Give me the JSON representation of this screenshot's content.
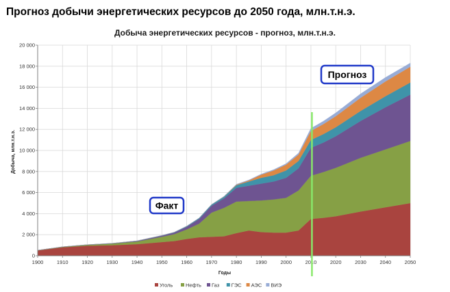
{
  "page_title": "Прогноз добычи энергетических ресурсов до 2050 года, млн.т.н.э.",
  "chart_data": {
    "type": "area",
    "stacked": true,
    "title": "Добыча энергетических  ресурсов - прогноз, млн.т.н.э.",
    "xlabel": "Годы",
    "ylabel": "Добыча, млн.т.н.э.",
    "xlim": [
      1900,
      2050
    ],
    "ylim": [
      0,
      20000
    ],
    "x_ticks": [
      1900,
      1910,
      1920,
      1930,
      1940,
      1950,
      1960,
      1970,
      1980,
      1990,
      2000,
      2010,
      2020,
      2030,
      2040,
      2050
    ],
    "y_ticks": [
      0,
      2000,
      4000,
      6000,
      8000,
      10000,
      12000,
      14000,
      16000,
      18000,
      20000
    ],
    "y_tick_labels": [
      "0",
      "2 000",
      "4 000",
      "6 000",
      "8 000",
      "10 000",
      "12 000",
      "14 000",
      "16 000",
      "18 000",
      "20 000"
    ],
    "grid": true,
    "legend_position": "bottom",
    "x": [
      1900,
      1910,
      1920,
      1930,
      1940,
      1950,
      1955,
      1960,
      1965,
      1970,
      1975,
      1980,
      1985,
      1990,
      1995,
      2000,
      2005,
      2010,
      2015,
      2020,
      2030,
      2040,
      2050
    ],
    "series": [
      {
        "name": "Уголь",
        "color": "#a9443f",
        "values": [
          500,
          800,
          950,
          1000,
          1100,
          1300,
          1400,
          1600,
          1750,
          1800,
          1850,
          2150,
          2400,
          2250,
          2200,
          2200,
          2400,
          3500,
          3600,
          3750,
          4200,
          4600,
          5000
        ]
      },
      {
        "name": "Нефть",
        "color": "#86a045",
        "values": [
          20,
          40,
          80,
          150,
          250,
          500,
          650,
          900,
          1300,
          2300,
          2700,
          3000,
          2800,
          3000,
          3150,
          3300,
          3800,
          4100,
          4350,
          4600,
          5100,
          5500,
          5900
        ]
      },
      {
        "name": "Газ",
        "color": "#6e5491",
        "values": [
          5,
          10,
          15,
          20,
          50,
          100,
          150,
          250,
          450,
          650,
          900,
          1300,
          1450,
          1600,
          1700,
          1900,
          2100,
          2650,
          2800,
          3000,
          3500,
          4000,
          4400
        ]
      },
      {
        "name": "ГЭС",
        "color": "#3f93a9",
        "values": [
          2,
          5,
          10,
          15,
          20,
          30,
          40,
          60,
          80,
          110,
          150,
          250,
          400,
          550,
          600,
          700,
          700,
          750,
          800,
          850,
          950,
          1050,
          1150
        ]
      },
      {
        "name": "АЭС",
        "color": "#dd8844",
        "values": [
          0,
          0,
          0,
          0,
          0,
          0,
          0,
          0,
          0,
          0,
          20,
          50,
          100,
          300,
          450,
          550,
          600,
          850,
          950,
          1050,
          1250,
          1400,
          1500
        ]
      },
      {
        "name": "ВИЭ",
        "color": "#98acd6",
        "values": [
          0,
          0,
          0,
          0,
          0,
          0,
          0,
          10,
          10,
          20,
          30,
          40,
          50,
          60,
          80,
          100,
          150,
          250,
          280,
          320,
          380,
          380,
          350
        ]
      }
    ],
    "annotations": {
      "fact_label": "Факт",
      "forecast_label": "Прогноз",
      "divider_year": 2010,
      "divider_color": "#88e86a"
    }
  }
}
